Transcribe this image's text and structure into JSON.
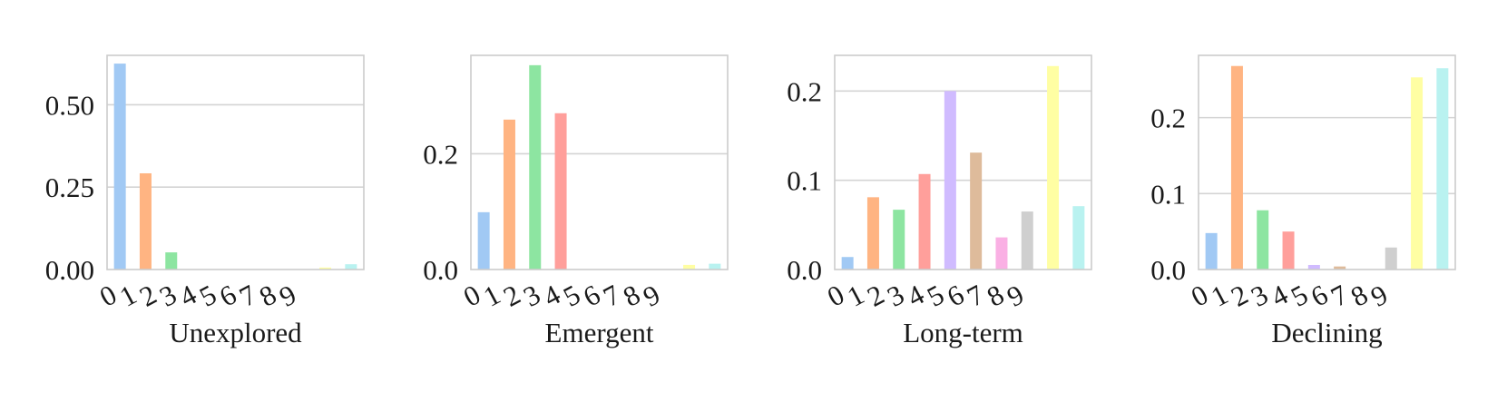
{
  "palette": [
    "#a1c9f4",
    "#ffb482",
    "#8de5a1",
    "#ff9f9b",
    "#d0bbff",
    "#debb9b",
    "#fab0e4",
    "#cfcfcf",
    "#fffea3",
    "#b9f2f0"
  ],
  "chart_data": [
    {
      "type": "bar",
      "title": "",
      "xlabel": "Unexplored",
      "ylabel": "",
      "categories": [
        "0",
        "1",
        "2",
        "3",
        "4",
        "5",
        "6",
        "7",
        "8",
        "9"
      ],
      "values": [
        0.625,
        0.292,
        0.052,
        0.0,
        0.0,
        0.0,
        0.0,
        0.0,
        0.006,
        0.016
      ],
      "ylim": [
        0,
        0.65
      ],
      "yticks": [
        0.0,
        0.25,
        0.5
      ],
      "ytick_labels": [
        "0.00",
        "0.25",
        "0.50"
      ],
      "grid": true
    },
    {
      "type": "bar",
      "title": "",
      "xlabel": "Emergent",
      "ylabel": "",
      "categories": [
        "0",
        "1",
        "2",
        "3",
        "4",
        "5",
        "6",
        "7",
        "8",
        "9"
      ],
      "values": [
        0.099,
        0.259,
        0.353,
        0.27,
        0.0,
        0.0,
        0.0,
        0.0,
        0.008,
        0.01
      ],
      "ylim": [
        0,
        0.37
      ],
      "yticks": [
        0.0,
        0.2
      ],
      "ytick_labels": [
        "0.0",
        "0.2"
      ],
      "grid": true
    },
    {
      "type": "bar",
      "title": "",
      "xlabel": "Long-term",
      "ylabel": "",
      "categories": [
        "0",
        "1",
        "2",
        "3",
        "4",
        "5",
        "6",
        "7",
        "8",
        "9"
      ],
      "values": [
        0.014,
        0.081,
        0.067,
        0.107,
        0.2,
        0.131,
        0.036,
        0.065,
        0.228,
        0.071
      ],
      "ylim": [
        0,
        0.24
      ],
      "yticks": [
        0.0,
        0.1,
        0.2
      ],
      "ytick_labels": [
        "0.0",
        "0.1",
        "0.2"
      ],
      "grid": true
    },
    {
      "type": "bar",
      "title": "",
      "xlabel": "Declining",
      "ylabel": "",
      "categories": [
        "0",
        "1",
        "2",
        "3",
        "4",
        "5",
        "6",
        "7",
        "8",
        "9"
      ],
      "values": [
        0.048,
        0.268,
        0.078,
        0.05,
        0.006,
        0.004,
        0.0,
        0.029,
        0.253,
        0.265
      ],
      "ylim": [
        0,
        0.282
      ],
      "yticks": [
        0.0,
        0.1,
        0.2
      ],
      "ytick_labels": [
        "0.0",
        "0.1",
        "0.2"
      ],
      "grid": true
    }
  ]
}
